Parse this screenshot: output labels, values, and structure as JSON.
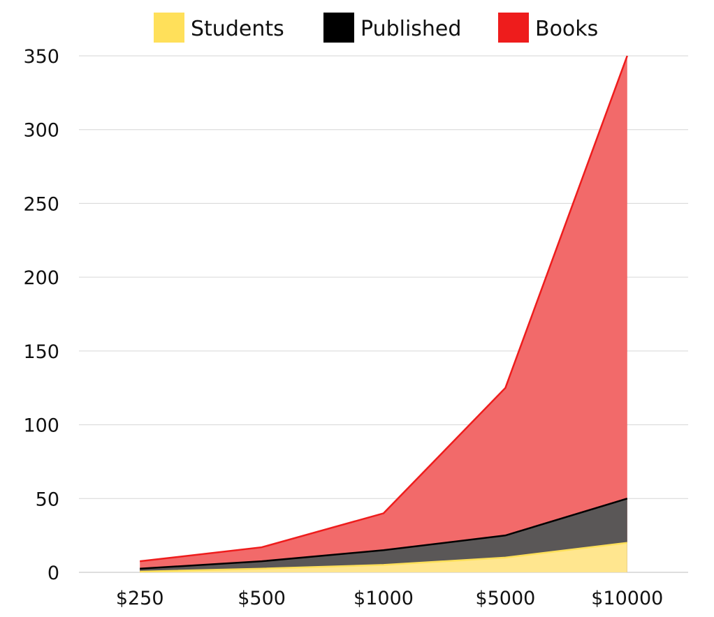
{
  "chart_data": {
    "type": "area",
    "title": "",
    "xlabel": "",
    "ylabel": "",
    "categories": [
      "$250",
      "$500",
      "$1000",
      "$5000",
      "$10000"
    ],
    "ylim": [
      0,
      350
    ],
    "yticks": [
      0,
      50,
      100,
      150,
      200,
      250,
      300,
      350
    ],
    "grid": true,
    "legend_position": "top",
    "series": [
      {
        "name": "Books",
        "color": "#ee1c1c",
        "fill": "#f26a6a",
        "values": [
          7.5,
          17,
          40,
          125,
          350
        ]
      },
      {
        "name": "Published",
        "color": "#000000",
        "fill": "#5a5757",
        "values": [
          2.5,
          7.5,
          15,
          25,
          50
        ]
      },
      {
        "name": "Students",
        "color": "#ffe05a",
        "fill": "#ffe68f",
        "values": [
          0.5,
          2.5,
          5,
          10,
          20
        ]
      }
    ],
    "legend": [
      {
        "name": "Students",
        "color": "#ffe05a"
      },
      {
        "name": "Published",
        "color": "#000000"
      },
      {
        "name": "Books",
        "color": "#ee1c1c"
      }
    ]
  }
}
